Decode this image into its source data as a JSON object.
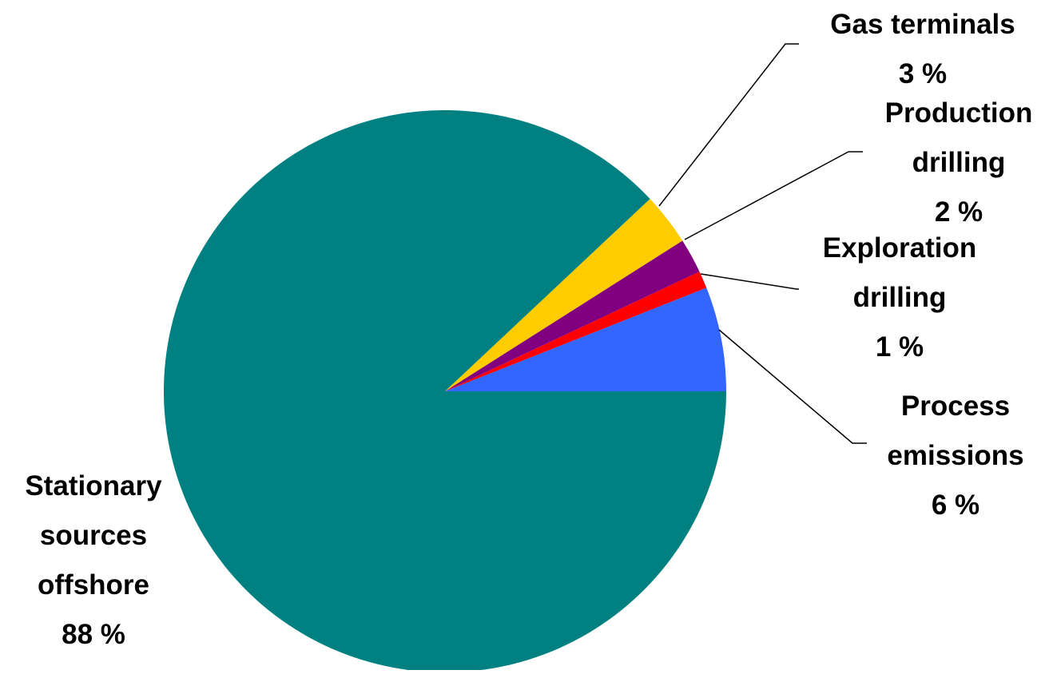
{
  "chart_data": {
    "type": "pie",
    "title": "",
    "slices": [
      {
        "label": [
          "Process",
          "emissions"
        ],
        "value_label": "6 %",
        "value": 6,
        "color": "#3366FF"
      },
      {
        "label": [
          "Exploration",
          "drilling"
        ],
        "value_label": "1 %",
        "value": 1,
        "color": "#FF0000"
      },
      {
        "label": [
          "Production",
          "drilling"
        ],
        "value_label": "2 %",
        "value": 2,
        "color": "#800080"
      },
      {
        "label": [
          "Gas terminals"
        ],
        "value_label": "3 %",
        "value": 3,
        "color": "#FFCC00"
      },
      {
        "label": [
          "Stationary",
          "sources",
          "offshore"
        ],
        "value_label": "88 %",
        "value": 88,
        "color": "#008080"
      }
    ],
    "start_angle_deg": 0,
    "direction": "counterclockwise",
    "legend": "none"
  }
}
